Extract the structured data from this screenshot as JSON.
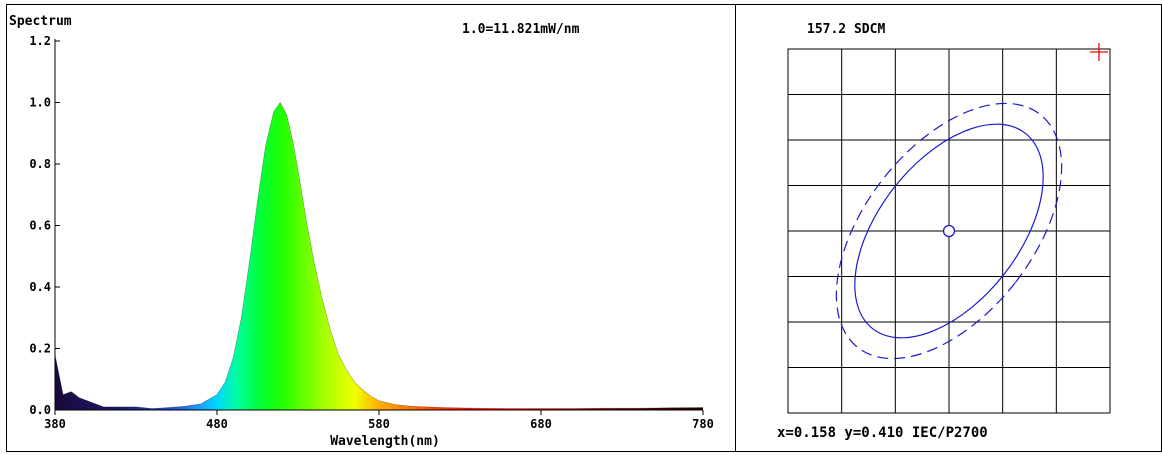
{
  "chart_data": [
    {
      "type": "area",
      "title": "Spectrum",
      "scale_label": "1.0=11.821mW/nm",
      "xlabel": "Wavelength(nm)",
      "ylabel": "",
      "xlim": [
        380,
        780
      ],
      "ylim": [
        0,
        1.2
      ],
      "x_ticks": [
        "380",
        "480",
        "580",
        "680",
        "780"
      ],
      "y_ticks": [
        "0.0",
        "0.2",
        "0.4",
        "0.6",
        "0.8",
        "1.0",
        "1.2"
      ],
      "peak_wavelength": 519,
      "x": [
        380,
        385,
        390,
        395,
        400,
        410,
        420,
        430,
        440,
        450,
        460,
        470,
        480,
        485,
        490,
        495,
        500,
        505,
        510,
        515,
        519,
        523,
        527,
        531,
        535,
        540,
        545,
        550,
        555,
        560,
        565,
        570,
        575,
        580,
        590,
        600,
        620,
        640,
        660,
        680,
        700,
        720,
        740,
        760,
        780
      ],
      "values": [
        0.18,
        0.05,
        0.06,
        0.04,
        0.03,
        0.01,
        0.01,
        0.01,
        0.005,
        0.008,
        0.012,
        0.02,
        0.05,
        0.09,
        0.17,
        0.3,
        0.48,
        0.68,
        0.86,
        0.97,
        1.0,
        0.96,
        0.87,
        0.75,
        0.62,
        0.48,
        0.36,
        0.26,
        0.18,
        0.13,
        0.09,
        0.065,
        0.045,
        0.03,
        0.018,
        0.012,
        0.008,
        0.006,
        0.005,
        0.005,
        0.005,
        0.006,
        0.006,
        0.007,
        0.008
      ]
    },
    {
      "type": "scatter",
      "title": "157.2 SDCM",
      "footer": "x=0.158 y=0.410 IEC/P2700",
      "grid": true,
      "grid_columns": 6,
      "grid_rows": 8,
      "target_marker": "circle",
      "measured_marker": "red-cross",
      "ellipses": [
        "solid",
        "dashed"
      ]
    }
  ]
}
